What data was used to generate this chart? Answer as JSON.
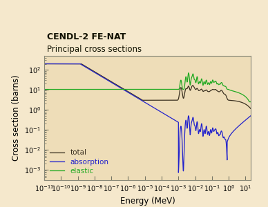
{
  "title_line1": "CENDL-2 FE-NAT",
  "title_line2": "Principal cross sections",
  "xlabel": "Energy (MeV)",
  "ylabel": "Cross section (barns)",
  "bg_color": "#f5e8cc",
  "plot_bg_color": "#eeddb8",
  "xmin": 1e-11,
  "xmax": 20,
  "ymin": 0.0003,
  "ymax": 500,
  "total_color": "#3a3020",
  "absorption_color": "#2222cc",
  "elastic_color": "#22aa22",
  "legend_labels": [
    "total",
    "absorption",
    "elastic"
  ]
}
